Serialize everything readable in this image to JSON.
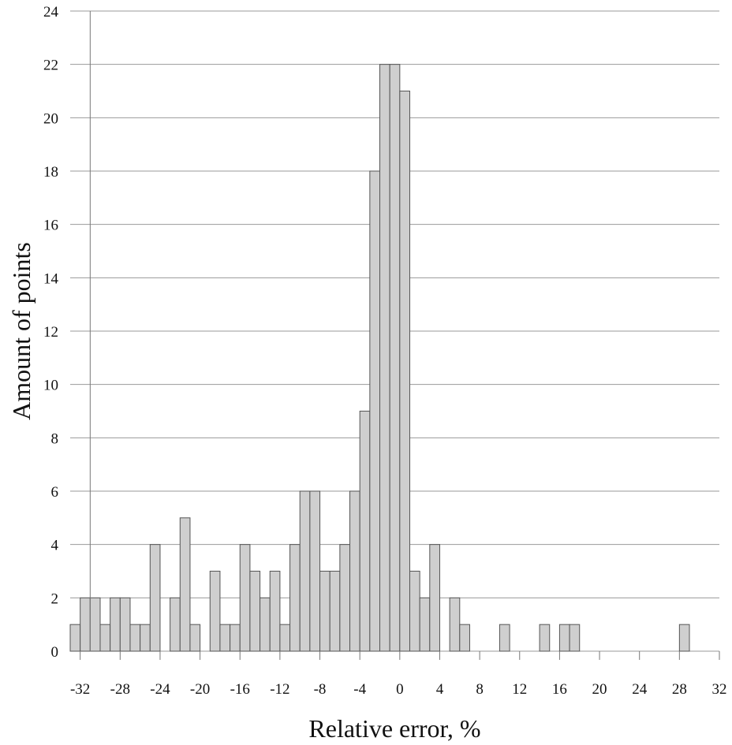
{
  "chart_data": {
    "type": "bar",
    "xlabel": "Relative error, %",
    "ylabel": "Amount of points",
    "xlim": [
      -33,
      32
    ],
    "ylim": [
      0,
      24
    ],
    "x_ticks": [
      -32,
      -28,
      -24,
      -20,
      -16,
      -12,
      -8,
      -4,
      0,
      4,
      8,
      12,
      16,
      20,
      24,
      28,
      32
    ],
    "y_ticks": [
      0,
      2,
      4,
      6,
      8,
      10,
      12,
      14,
      16,
      18,
      20,
      22,
      24
    ],
    "grid": "horizontal",
    "bin_width": 1,
    "bin_starts": [
      -33,
      -32,
      -31,
      -30,
      -29,
      -28,
      -27,
      -26,
      -25,
      -24,
      -23,
      -22,
      -21,
      -20,
      -19,
      -18,
      -17,
      -16,
      -15,
      -14,
      -13,
      -12,
      -11,
      -10,
      -9,
      -8,
      -7,
      -6,
      -5,
      -4,
      -3,
      -2,
      -1,
      0,
      1,
      2,
      3,
      4,
      5,
      6,
      7,
      8,
      9,
      10,
      11,
      12,
      13,
      14,
      15,
      16,
      17,
      18,
      19,
      20,
      21,
      22,
      23,
      24,
      25,
      26,
      27,
      28,
      29,
      30,
      31
    ],
    "values": [
      1,
      2,
      2,
      1,
      2,
      2,
      1,
      1,
      4,
      0,
      2,
      5,
      1,
      0,
      3,
      1,
      1,
      4,
      3,
      2,
      3,
      1,
      4,
      6,
      6,
      3,
      3,
      4,
      6,
      9,
      18,
      22,
      22,
      21,
      3,
      2,
      4,
      0,
      2,
      1,
      0,
      0,
      0,
      1,
      0,
      0,
      0,
      1,
      0,
      1,
      1,
      0,
      0,
      0,
      0,
      0,
      0,
      0,
      0,
      0,
      0,
      1,
      0,
      0,
      0
    ]
  }
}
